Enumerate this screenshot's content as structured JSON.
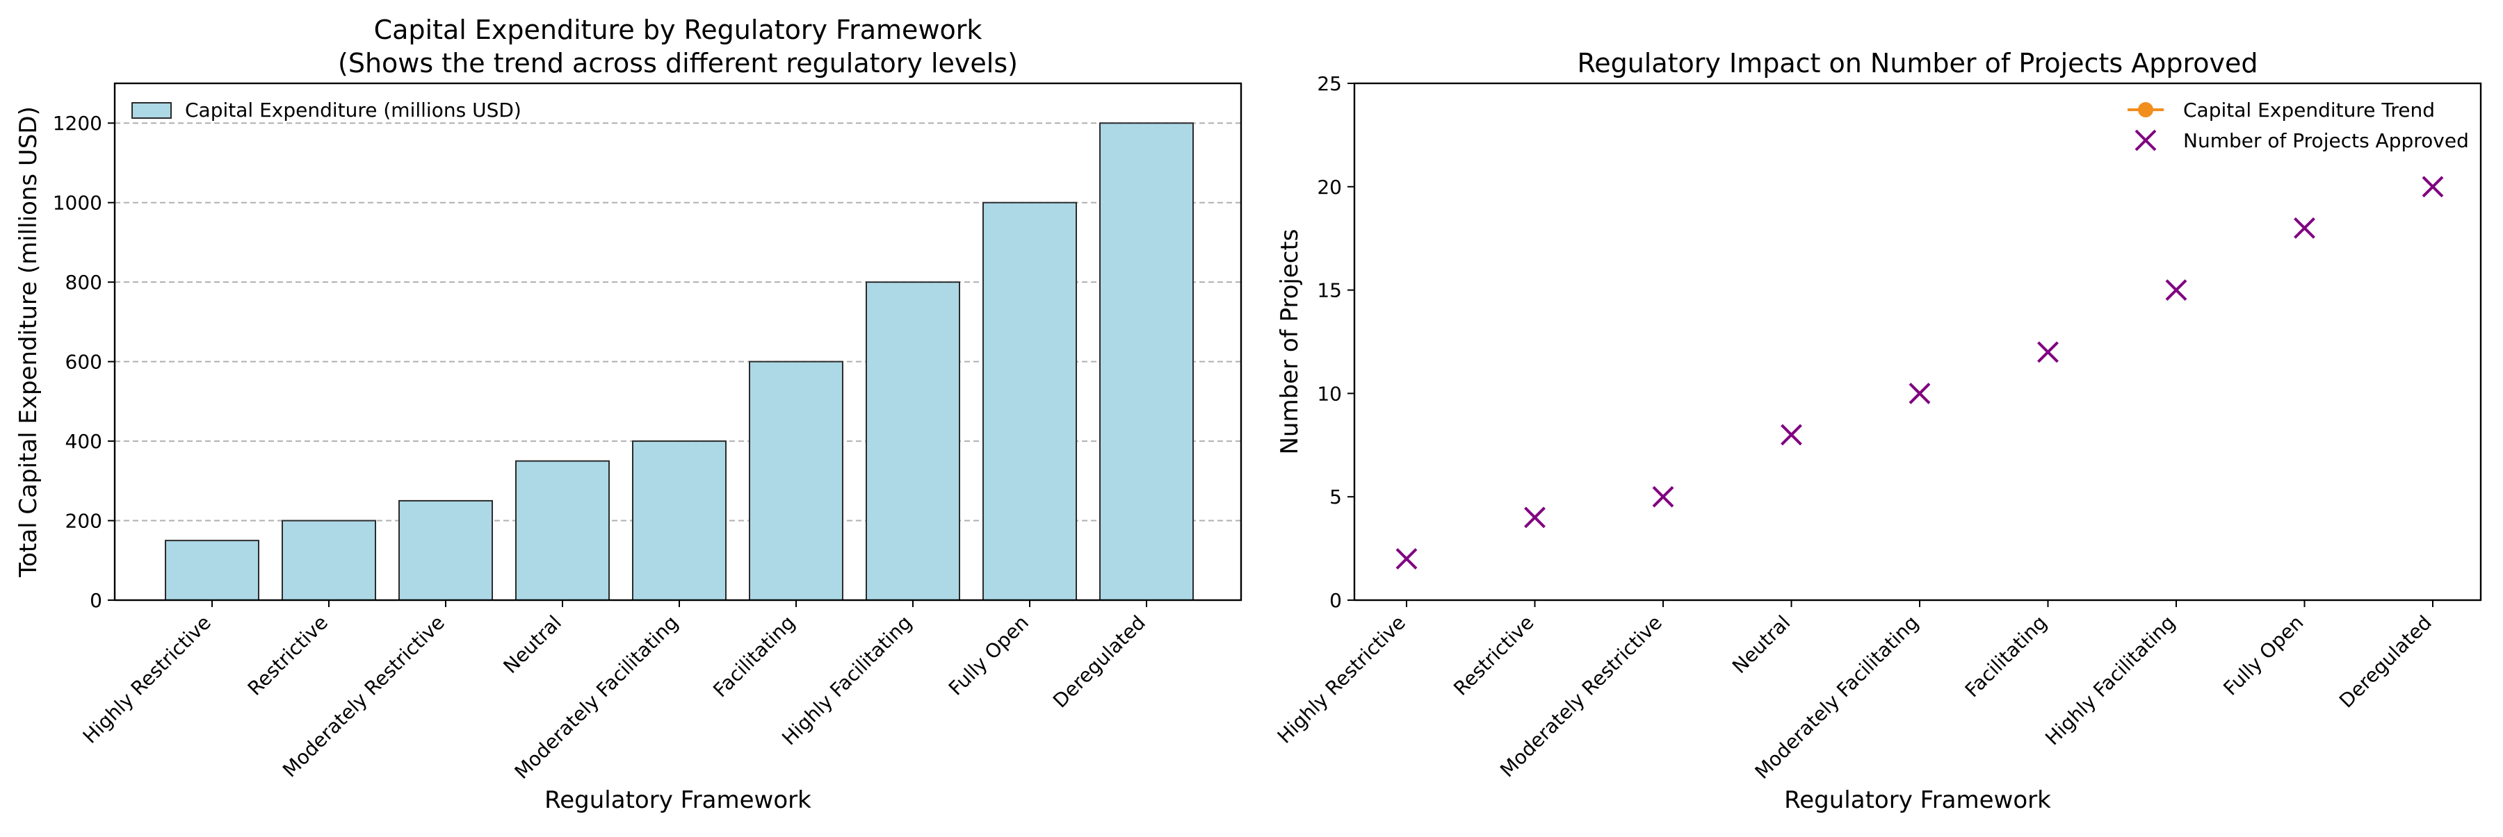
{
  "chart_data": [
    {
      "type": "bar",
      "title_lines": [
        "Capital Expenditure by Regulatory Framework",
        "(Shows the trend across different regulatory levels)"
      ],
      "xlabel": "Regulatory Framework",
      "ylabel": "Total Capital Expenditure (millions USD)",
      "categories": [
        "Highly Restrictive",
        "Restrictive",
        "Moderately Restrictive",
        "Neutral",
        "Moderately Facilitating",
        "Facilitating",
        "Highly Facilitating",
        "Fully Open",
        "Deregulated"
      ],
      "series": [
        {
          "name": "Capital Expenditure (millions USD)",
          "values": [
            150,
            200,
            250,
            350,
            400,
            600,
            800,
            1000,
            1200
          ],
          "color": "#add8e6"
        }
      ],
      "ylim": [
        0,
        1300
      ],
      "yticks": [
        0,
        200,
        400,
        600,
        800,
        1000,
        1200
      ],
      "grid": "horizontal dashed",
      "legend_position": "top-left"
    },
    {
      "type": "scatter",
      "title": "Regulatory Impact on Number of Projects Approved",
      "xlabel": "Regulatory Framework",
      "ylabel": "Number of Projects",
      "categories": [
        "Highly Restrictive",
        "Restrictive",
        "Moderately Restrictive",
        "Neutral",
        "Moderately Facilitating",
        "Facilitating",
        "Highly Facilitating",
        "Fully Open",
        "Deregulated"
      ],
      "series": [
        {
          "name": "Capital Expenditure Trend",
          "values": [],
          "color": "#f28e1c",
          "marker": "line-dot"
        },
        {
          "name": "Number of Projects Approved",
          "values": [
            2,
            4,
            5,
            8,
            10,
            12,
            15,
            18,
            20
          ],
          "color": "#800080",
          "marker": "x"
        }
      ],
      "ylim": [
        0,
        25
      ],
      "yticks": [
        0,
        5,
        10,
        15,
        20,
        25
      ],
      "grid": "none",
      "legend_position": "top-right"
    }
  ]
}
